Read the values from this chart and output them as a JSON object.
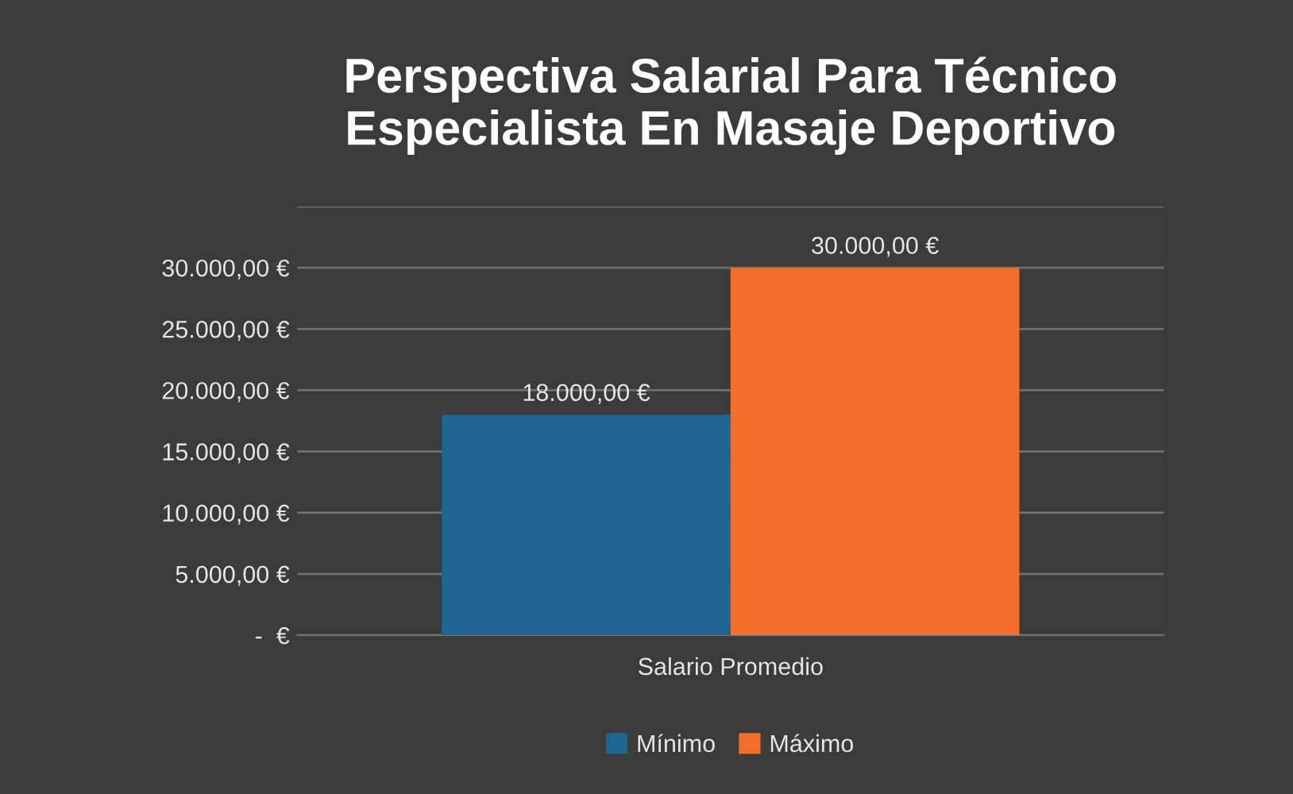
{
  "chart_data": {
    "type": "bar",
    "title": "Perspectiva Salarial Para Técnico\nEspecialista En Masaje Deportivo",
    "categories": [
      "Salario Promedio"
    ],
    "series": [
      {
        "name": "Mínimo",
        "color": "#1f6591",
        "values": [
          18000
        ],
        "value_labels": [
          "18.000,00 €"
        ]
      },
      {
        "name": "Máximo",
        "color": "#f26f2a",
        "values": [
          30000
        ],
        "value_labels": [
          "30.000,00 €"
        ]
      }
    ],
    "ylim": [
      0,
      35000
    ],
    "yticks": [
      {
        "value": 0,
        "label": "-  €"
      },
      {
        "value": 5000,
        "label": "5.000,00 €"
      },
      {
        "value": 10000,
        "label": "10.000,00 €"
      },
      {
        "value": 15000,
        "label": "15.000,00 €"
      },
      {
        "value": 20000,
        "label": "20.000,00 €"
      },
      {
        "value": 25000,
        "label": "25.000,00 €"
      },
      {
        "value": 30000,
        "label": "30.000,00 €"
      },
      {
        "value": 35000,
        "label": null
      }
    ],
    "grid": "y",
    "legend": "bottom"
  }
}
